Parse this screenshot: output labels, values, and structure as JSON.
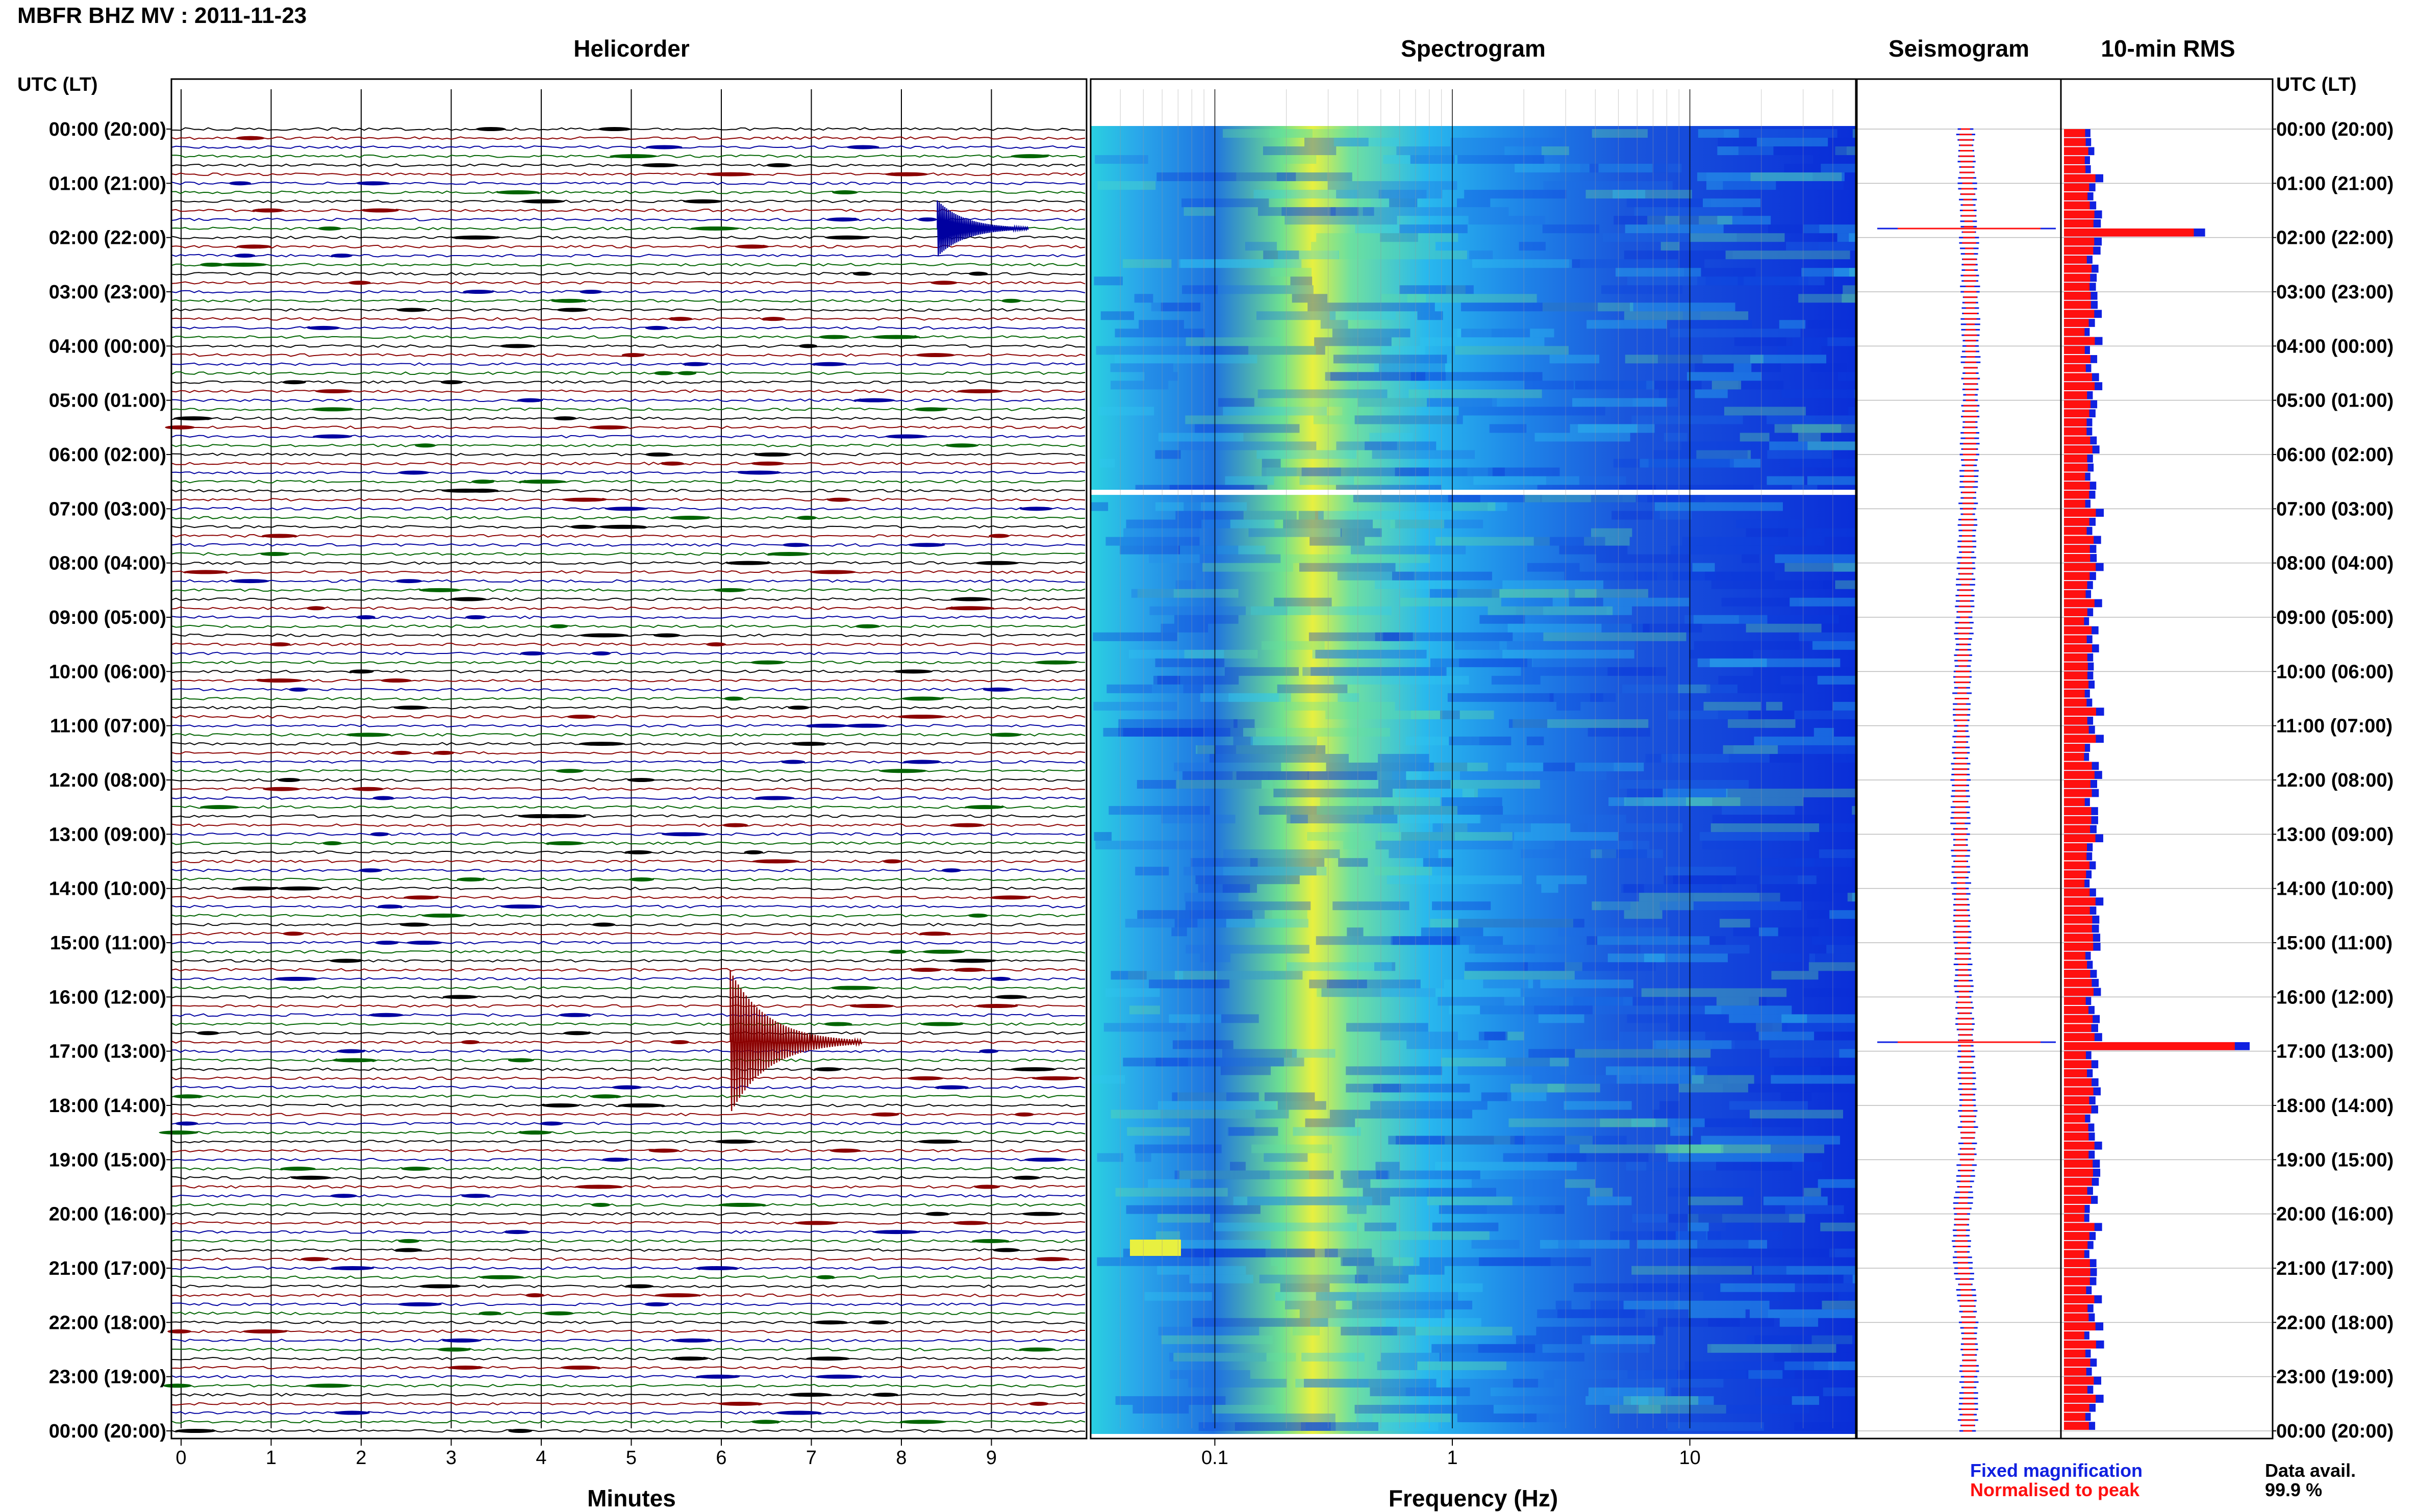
{
  "header": {
    "title": "MBFR BHZ MV : 2011-11-23"
  },
  "panels": {
    "helicorder": "Helicorder",
    "spectrogram": "Spectrogram",
    "seismogram": "Seismogram",
    "rms": "10-min RMS"
  },
  "axes": {
    "utc_label_left": "UTC (LT)",
    "utc_label_right": "UTC (LT)",
    "minutes_label": "Minutes",
    "frequency_label": "Frequency (Hz)"
  },
  "legend": {
    "fixed": "Fixed magnification",
    "fixed_color": "#1020e0",
    "normalised": "Normalised to peak",
    "normalised_color": "#ff1010"
  },
  "availability": {
    "label": "Data avail.",
    "value": "99.9 %"
  },
  "colors": {
    "trace_colors": [
      "#000000",
      "#8b0000",
      "#0000a0",
      "#006400"
    ],
    "spectro_low": "#0033dd",
    "spectro_high": "#ffff00",
    "rms_fixed": "#1020e0",
    "rms_norm": "#ff1010"
  },
  "chart_data": [
    {
      "type": "line",
      "panel": "Helicorder",
      "xlabel": "Minutes",
      "xticks": [
        "0",
        "1",
        "2",
        "3",
        "4",
        "5",
        "6",
        "7",
        "8",
        "9"
      ],
      "xlim": [
        0,
        10
      ],
      "rows_per_hour": 6,
      "time_labels": [
        "00:00 (20:00)",
        "01:00 (21:00)",
        "02:00 (22:00)",
        "03:00 (23:00)",
        "04:00 (00:00)",
        "05:00 (01:00)",
        "06:00 (02:00)",
        "07:00 (03:00)",
        "08:00 (04:00)",
        "09:00 (05:00)",
        "10:00 (06:00)",
        "11:00 (07:00)",
        "12:00 (08:00)",
        "13:00 (09:00)",
        "14:00 (10:00)",
        "15:00 (11:00)",
        "16:00 (12:00)",
        "17:00 (13:00)",
        "18:00 (14:00)",
        "19:00 (15:00)",
        "20:00 (16:00)",
        "21:00 (17:00)",
        "22:00 (18:00)",
        "23:00 (19:00)",
        "00:00 (20:00)"
      ],
      "events": [
        {
          "time": "01:50",
          "minute": 8.4,
          "color": "blue"
        },
        {
          "time": "16:50",
          "minute": 6.1,
          "color": "darkred"
        }
      ]
    },
    {
      "type": "heatmap",
      "panel": "Spectrogram",
      "xlabel": "Frequency (Hz)",
      "xscale": "log",
      "xlim": [
        0.03,
        50
      ],
      "xticks": [
        "0.1",
        "1",
        "10"
      ]
    },
    {
      "type": "line",
      "panel": "Seismogram",
      "series": [
        {
          "name": "Fixed magnification",
          "color": "blue"
        },
        {
          "name": "Normalised to peak",
          "color": "red"
        }
      ],
      "spikes_at": [
        "01:50",
        "16:50"
      ]
    },
    {
      "type": "bar",
      "panel": "10-min RMS",
      "orientation": "horizontal",
      "series": [
        {
          "name": "Fixed magnification",
          "color": "blue"
        },
        {
          "name": "Normalised to peak",
          "color": "red"
        }
      ],
      "interval_minutes": 10,
      "peaks": [
        {
          "time": "01:50",
          "relative": 0.76
        },
        {
          "time": "16:50",
          "relative": 1.0
        }
      ],
      "typical_relative": 0.18
    }
  ]
}
